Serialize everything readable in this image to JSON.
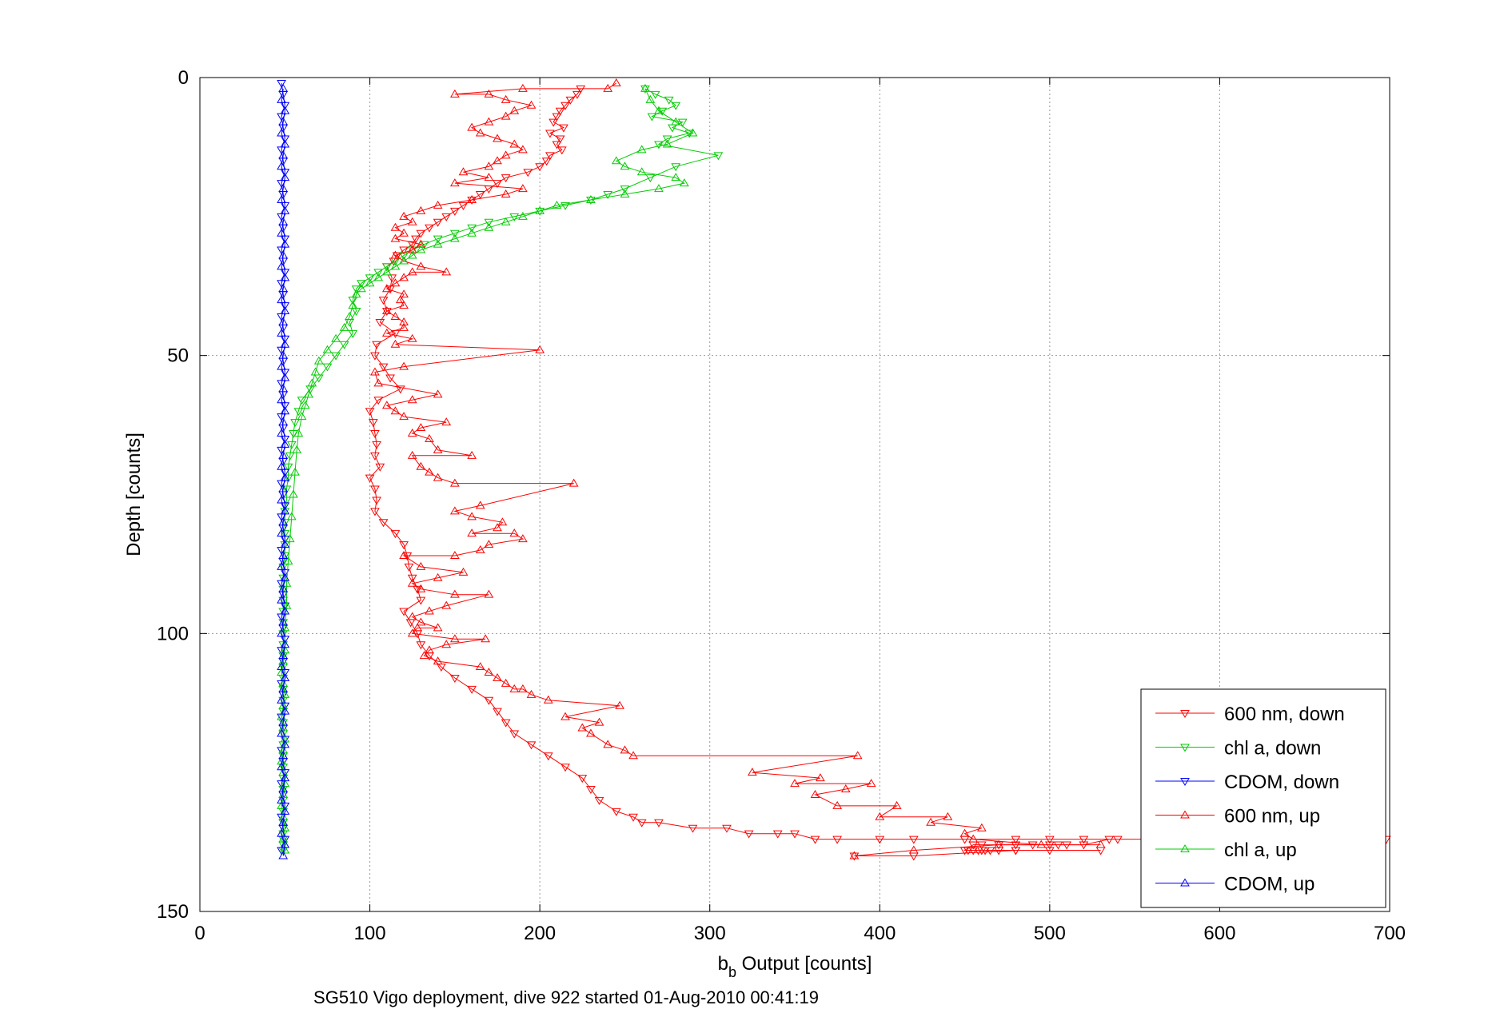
{
  "chart_data": {
    "type": "line",
    "title": "",
    "footer": "SG510 Vigo deployment, dive 922 started 01-Aug-2010 00:41:19",
    "xlabel_main": "b",
    "xlabel_sub": "b",
    "xlabel_rest": " Output [counts]",
    "ylabel": "Depth [counts]",
    "xlim": [
      0,
      700
    ],
    "ylim": [
      0,
      150
    ],
    "y_reversed": true,
    "grid": true,
    "legend_position": "bottom-right",
    "x_ticks": [
      "0",
      "100",
      "200",
      "300",
      "400",
      "500",
      "600",
      "700"
    ],
    "y_ticks": [
      "0",
      "50",
      "100",
      "150"
    ],
    "series": [
      {
        "name": "600 nm, down",
        "color": "#ff0000",
        "marker": "triangle-down",
        "x": [
          224,
          222,
          218,
          215,
          212,
          210,
          208,
          214,
          206,
          212,
          210,
          213,
          206,
          204,
          200,
          193,
          180,
          175,
          170,
          165,
          160,
          155,
          150,
          145,
          140,
          135,
          130,
          127,
          125,
          120,
          116,
          114,
          110,
          113,
          112,
          108,
          110,
          106,
          115,
          104,
          103,
          108,
          112,
          118,
          105,
          100,
          102,
          103,
          104,
          103,
          106,
          100,
          103,
          104,
          103,
          108,
          115,
          120,
          122,
          123,
          125,
          128,
          130,
          120,
          124,
          128,
          130,
          135,
          142,
          150,
          160,
          170,
          175,
          180,
          185,
          195,
          205,
          215,
          225,
          230,
          235,
          245,
          255,
          260,
          270,
          290,
          310,
          323,
          340,
          350,
          362,
          375,
          400,
          420,
          450,
          480,
          500,
          520,
          540,
          560,
          600,
          650,
          698,
          620,
          560,
          535,
          520,
          510,
          505,
          500,
          490,
          480,
          470,
          460,
          455,
          450,
          452,
          455,
          458,
          460,
          462,
          465,
          470,
          480,
          500,
          530,
          480,
          420,
          385
        ],
        "y": [
          2,
          3,
          4,
          5,
          6,
          7,
          8,
          9,
          10,
          11,
          12,
          13,
          14,
          15,
          16,
          17,
          18,
          19,
          20,
          21,
          22,
          23,
          24,
          25,
          26,
          27,
          28,
          29,
          30,
          31,
          32,
          33,
          34,
          36,
          38,
          40,
          42,
          44,
          46,
          48,
          50,
          52,
          54,
          56,
          58,
          60,
          62,
          64,
          66,
          68,
          70,
          72,
          74,
          76,
          78,
          80,
          82,
          84,
          86,
          88,
          90,
          92,
          94,
          96,
          98,
          100,
          102,
          104,
          106,
          108,
          110,
          112,
          114,
          116,
          118,
          120,
          122,
          124,
          126,
          128,
          130,
          132,
          133,
          134,
          134,
          135,
          135,
          136,
          136,
          136,
          137,
          137,
          137,
          137,
          137,
          137,
          137,
          137,
          137,
          137,
          137,
          136,
          137,
          137,
          137,
          137,
          138,
          138,
          138,
          138,
          138,
          138,
          138,
          138,
          138,
          139,
          139,
          139,
          139,
          139,
          139,
          139,
          139,
          139,
          139,
          139,
          139,
          140,
          140
        ]
      },
      {
        "name": "chl a, down",
        "color": "#00cc00",
        "marker": "triangle-down",
        "x": [
          262,
          268,
          276,
          280,
          272,
          266,
          284,
          278,
          288,
          275,
          270,
          305,
          280,
          265,
          250,
          240,
          230,
          215,
          200,
          185,
          170,
          160,
          150,
          140,
          132,
          125,
          120,
          115,
          110,
          105,
          100,
          95,
          92,
          90,
          92,
          88,
          90,
          85,
          80,
          75,
          70,
          65,
          60,
          58,
          56,
          55,
          54,
          53,
          52,
          52,
          51,
          51,
          50,
          50,
          50,
          50,
          50,
          49,
          49,
          49,
          49,
          49,
          49,
          49,
          49,
          49,
          49,
          49,
          49,
          49,
          49,
          49,
          49,
          49,
          49,
          49,
          49,
          49,
          49,
          49,
          49,
          49,
          49,
          49,
          49
        ],
        "y": [
          2,
          3,
          4,
          5,
          6,
          7,
          8,
          9,
          10,
          11,
          12,
          14,
          16,
          18,
          20,
          21,
          22,
          23,
          24,
          25,
          26,
          27,
          28,
          29,
          30,
          31,
          32,
          33,
          34,
          35,
          36,
          37,
          38,
          40,
          42,
          44,
          46,
          48,
          50,
          52,
          54,
          56,
          58,
          60,
          62,
          64,
          66,
          68,
          70,
          72,
          74,
          76,
          78,
          80,
          82,
          84,
          86,
          88,
          90,
          92,
          94,
          96,
          98,
          100,
          102,
          104,
          106,
          108,
          110,
          112,
          114,
          116,
          118,
          120,
          122,
          124,
          126,
          128,
          130,
          132,
          134,
          136,
          137,
          138,
          139
        ]
      },
      {
        "name": "CDOM, down",
        "color": "#0000ff",
        "marker": "triangle-down",
        "x": [
          48,
          49,
          50,
          48,
          49,
          50,
          48,
          49,
          50,
          48,
          49,
          50,
          48,
          49,
          50,
          48,
          49,
          50,
          48,
          49,
          50,
          48,
          49,
          50,
          48,
          49,
          50,
          48,
          49,
          50,
          48,
          49,
          50,
          48,
          49,
          50,
          48,
          49,
          50,
          48,
          49,
          50,
          48,
          49,
          50,
          48,
          49,
          50,
          48,
          49,
          50,
          48,
          49,
          50,
          48,
          49,
          50,
          48,
          49,
          50,
          48,
          49,
          50,
          48,
          49,
          50,
          48,
          49,
          50,
          48
        ],
        "y": [
          1,
          3,
          5,
          7,
          9,
          11,
          13,
          15,
          17,
          19,
          21,
          23,
          25,
          27,
          29,
          31,
          33,
          35,
          37,
          39,
          41,
          43,
          45,
          47,
          49,
          51,
          53,
          55,
          57,
          59,
          61,
          63,
          65,
          67,
          69,
          71,
          73,
          75,
          77,
          79,
          81,
          83,
          85,
          87,
          89,
          91,
          93,
          95,
          97,
          99,
          101,
          103,
          105,
          107,
          109,
          111,
          113,
          115,
          117,
          119,
          121,
          123,
          125,
          127,
          129,
          131,
          133,
          135,
          137,
          139
        ]
      },
      {
        "name": "600 nm, up",
        "color": "#ff0000",
        "marker": "triangle-up",
        "x": [
          385,
          420,
          470,
          530,
          495,
          455,
          450,
          460,
          430,
          440,
          400,
          410,
          375,
          362,
          380,
          395,
          350,
          365,
          325,
          387,
          255,
          250,
          240,
          230,
          225,
          235,
          215,
          247,
          205,
          195,
          190,
          185,
          180,
          175,
          170,
          165,
          140,
          132,
          135,
          145,
          168,
          150,
          125,
          128,
          140,
          130,
          125,
          135,
          145,
          170,
          150,
          130,
          125,
          140,
          155,
          130,
          120,
          150,
          165,
          170,
          190,
          185,
          160,
          175,
          178,
          160,
          150,
          165,
          220,
          150,
          140,
          135,
          130,
          125,
          160,
          140,
          135,
          125,
          130,
          145,
          120,
          115,
          110,
          125,
          140,
          105,
          103,
          120,
          200,
          115,
          125,
          110,
          120,
          120,
          115,
          110,
          120,
          118,
          120,
          110,
          115,
          120,
          125,
          145,
          130,
          120,
          115,
          125,
          130,
          115,
          120,
          115,
          125,
          120,
          130,
          140,
          160,
          180,
          190,
          150,
          170,
          155,
          170,
          175,
          180,
          190,
          185,
          175,
          165,
          160,
          170,
          180,
          185,
          195,
          180,
          170,
          150,
          190,
          240,
          245
        ],
        "y": [
          140,
          139,
          138,
          138,
          138,
          137,
          136,
          135,
          134,
          133,
          133,
          131,
          131,
          129,
          128,
          127,
          127,
          126,
          125,
          122,
          122,
          121,
          120,
          118,
          117,
          116,
          115,
          113,
          112,
          111,
          110,
          110,
          109,
          108,
          107,
          106,
          105,
          104,
          103,
          102,
          101,
          101,
          100,
          99,
          99,
          98,
          97,
          96,
          95,
          93,
          93,
          92,
          91,
          90,
          89,
          88,
          86,
          86,
          85,
          84,
          83,
          82,
          82,
          81,
          80,
          79,
          78,
          77,
          73,
          73,
          72,
          71,
          70,
          68,
          68,
          67,
          65,
          64,
          63,
          62,
          61,
          60,
          59,
          58,
          57,
          55,
          53,
          52,
          49,
          48,
          47,
          46,
          45,
          44,
          43,
          42,
          41,
          40,
          39,
          38,
          37,
          36,
          35,
          35,
          34,
          33,
          32,
          31,
          30,
          29,
          28,
          27,
          26,
          25,
          24,
          23,
          22,
          21,
          20,
          19,
          18,
          17,
          16,
          15,
          14,
          13,
          12,
          11,
          10,
          9,
          8,
          7,
          6,
          5,
          4,
          3,
          3,
          2,
          2,
          1
        ]
      },
      {
        "name": "chl a, up",
        "color": "#00cc00",
        "marker": "triangle-up",
        "x": [
          50,
          49,
          50,
          49,
          48,
          49,
          50,
          49,
          48,
          49,
          50,
          49,
          48,
          49,
          50,
          49,
          48,
          49,
          50,
          50,
          51,
          51,
          52,
          53,
          54,
          55,
          56,
          57,
          58,
          60,
          62,
          64,
          66,
          68,
          70,
          75,
          80,
          85,
          88,
          90,
          92,
          95,
          100,
          105,
          110,
          115,
          120,
          125,
          130,
          140,
          150,
          160,
          170,
          180,
          190,
          200,
          210,
          230,
          250,
          270,
          285,
          280,
          260,
          250,
          245,
          260,
          275,
          290,
          280,
          270,
          265,
          262
        ],
        "y": [
          139,
          137,
          135,
          133,
          131,
          129,
          127,
          125,
          123,
          121,
          119,
          117,
          115,
          113,
          111,
          109,
          107,
          105,
          103,
          99,
          95,
          91,
          87,
          83,
          79,
          75,
          71,
          67,
          64,
          61,
          59,
          57,
          55,
          53,
          51,
          49,
          47,
          45,
          43,
          41,
          39,
          38,
          37,
          36,
          35,
          34,
          33,
          32,
          31,
          30,
          29,
          28,
          27,
          26,
          25,
          24,
          23,
          22,
          21,
          20,
          19,
          18,
          17,
          16,
          15,
          13,
          12,
          10,
          8,
          6,
          4,
          2
        ]
      },
      {
        "name": "CDOM, up",
        "color": "#0000ff",
        "marker": "triangle-up",
        "x": [
          49,
          50,
          48,
          49,
          50,
          48,
          49,
          50,
          48,
          49,
          50,
          48,
          49,
          50,
          48,
          49,
          50,
          48,
          49,
          50,
          48,
          49,
          50,
          48,
          49,
          50,
          48,
          49,
          50,
          48,
          49,
          50,
          48,
          49,
          50,
          48,
          49,
          50,
          48,
          49,
          50,
          48,
          49,
          50,
          48,
          49,
          50,
          48,
          49,
          50,
          48,
          49,
          50,
          48,
          49,
          50,
          48,
          49,
          50,
          48,
          49,
          50,
          48,
          49,
          50,
          48,
          49,
          50,
          48,
          49
        ],
        "y": [
          140,
          138,
          136,
          134,
          132,
          130,
          128,
          126,
          124,
          122,
          120,
          118,
          116,
          114,
          112,
          110,
          108,
          106,
          104,
          102,
          100,
          98,
          96,
          94,
          92,
          90,
          88,
          86,
          84,
          82,
          80,
          78,
          76,
          74,
          72,
          70,
          68,
          66,
          64,
          62,
          60,
          58,
          56,
          54,
          52,
          50,
          48,
          46,
          44,
          42,
          40,
          38,
          36,
          34,
          32,
          30,
          28,
          26,
          24,
          22,
          20,
          18,
          16,
          14,
          12,
          10,
          8,
          6,
          4,
          2
        ]
      }
    ]
  }
}
